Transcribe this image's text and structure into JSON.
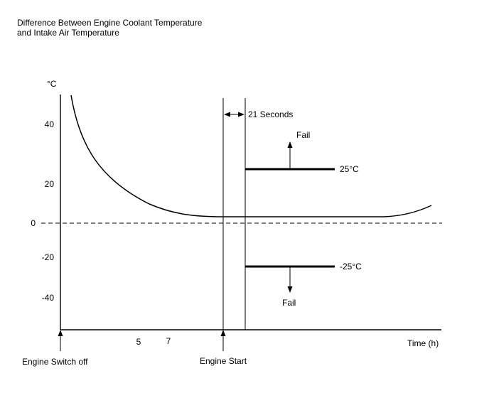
{
  "title_lines": [
    "Difference Between Engine Coolant Temperature",
    "and Intake Air Temperature"
  ],
  "y_axis": {
    "unit": "°C",
    "ticks": [
      "40",
      "20",
      "0",
      "-20",
      "-40"
    ]
  },
  "x_axis": {
    "label": "Time (h)",
    "ticks": [
      "5",
      "7"
    ]
  },
  "annotations": {
    "interval": "21 Seconds",
    "upper_fail": "Fail",
    "upper_threshold": "25°C",
    "lower_threshold": "-25°C",
    "lower_fail": "Fail",
    "engine_off": "Engine Switch off",
    "engine_start": "Engine Start"
  },
  "colors": {
    "line": "#000000",
    "background": "#ffffff"
  }
}
